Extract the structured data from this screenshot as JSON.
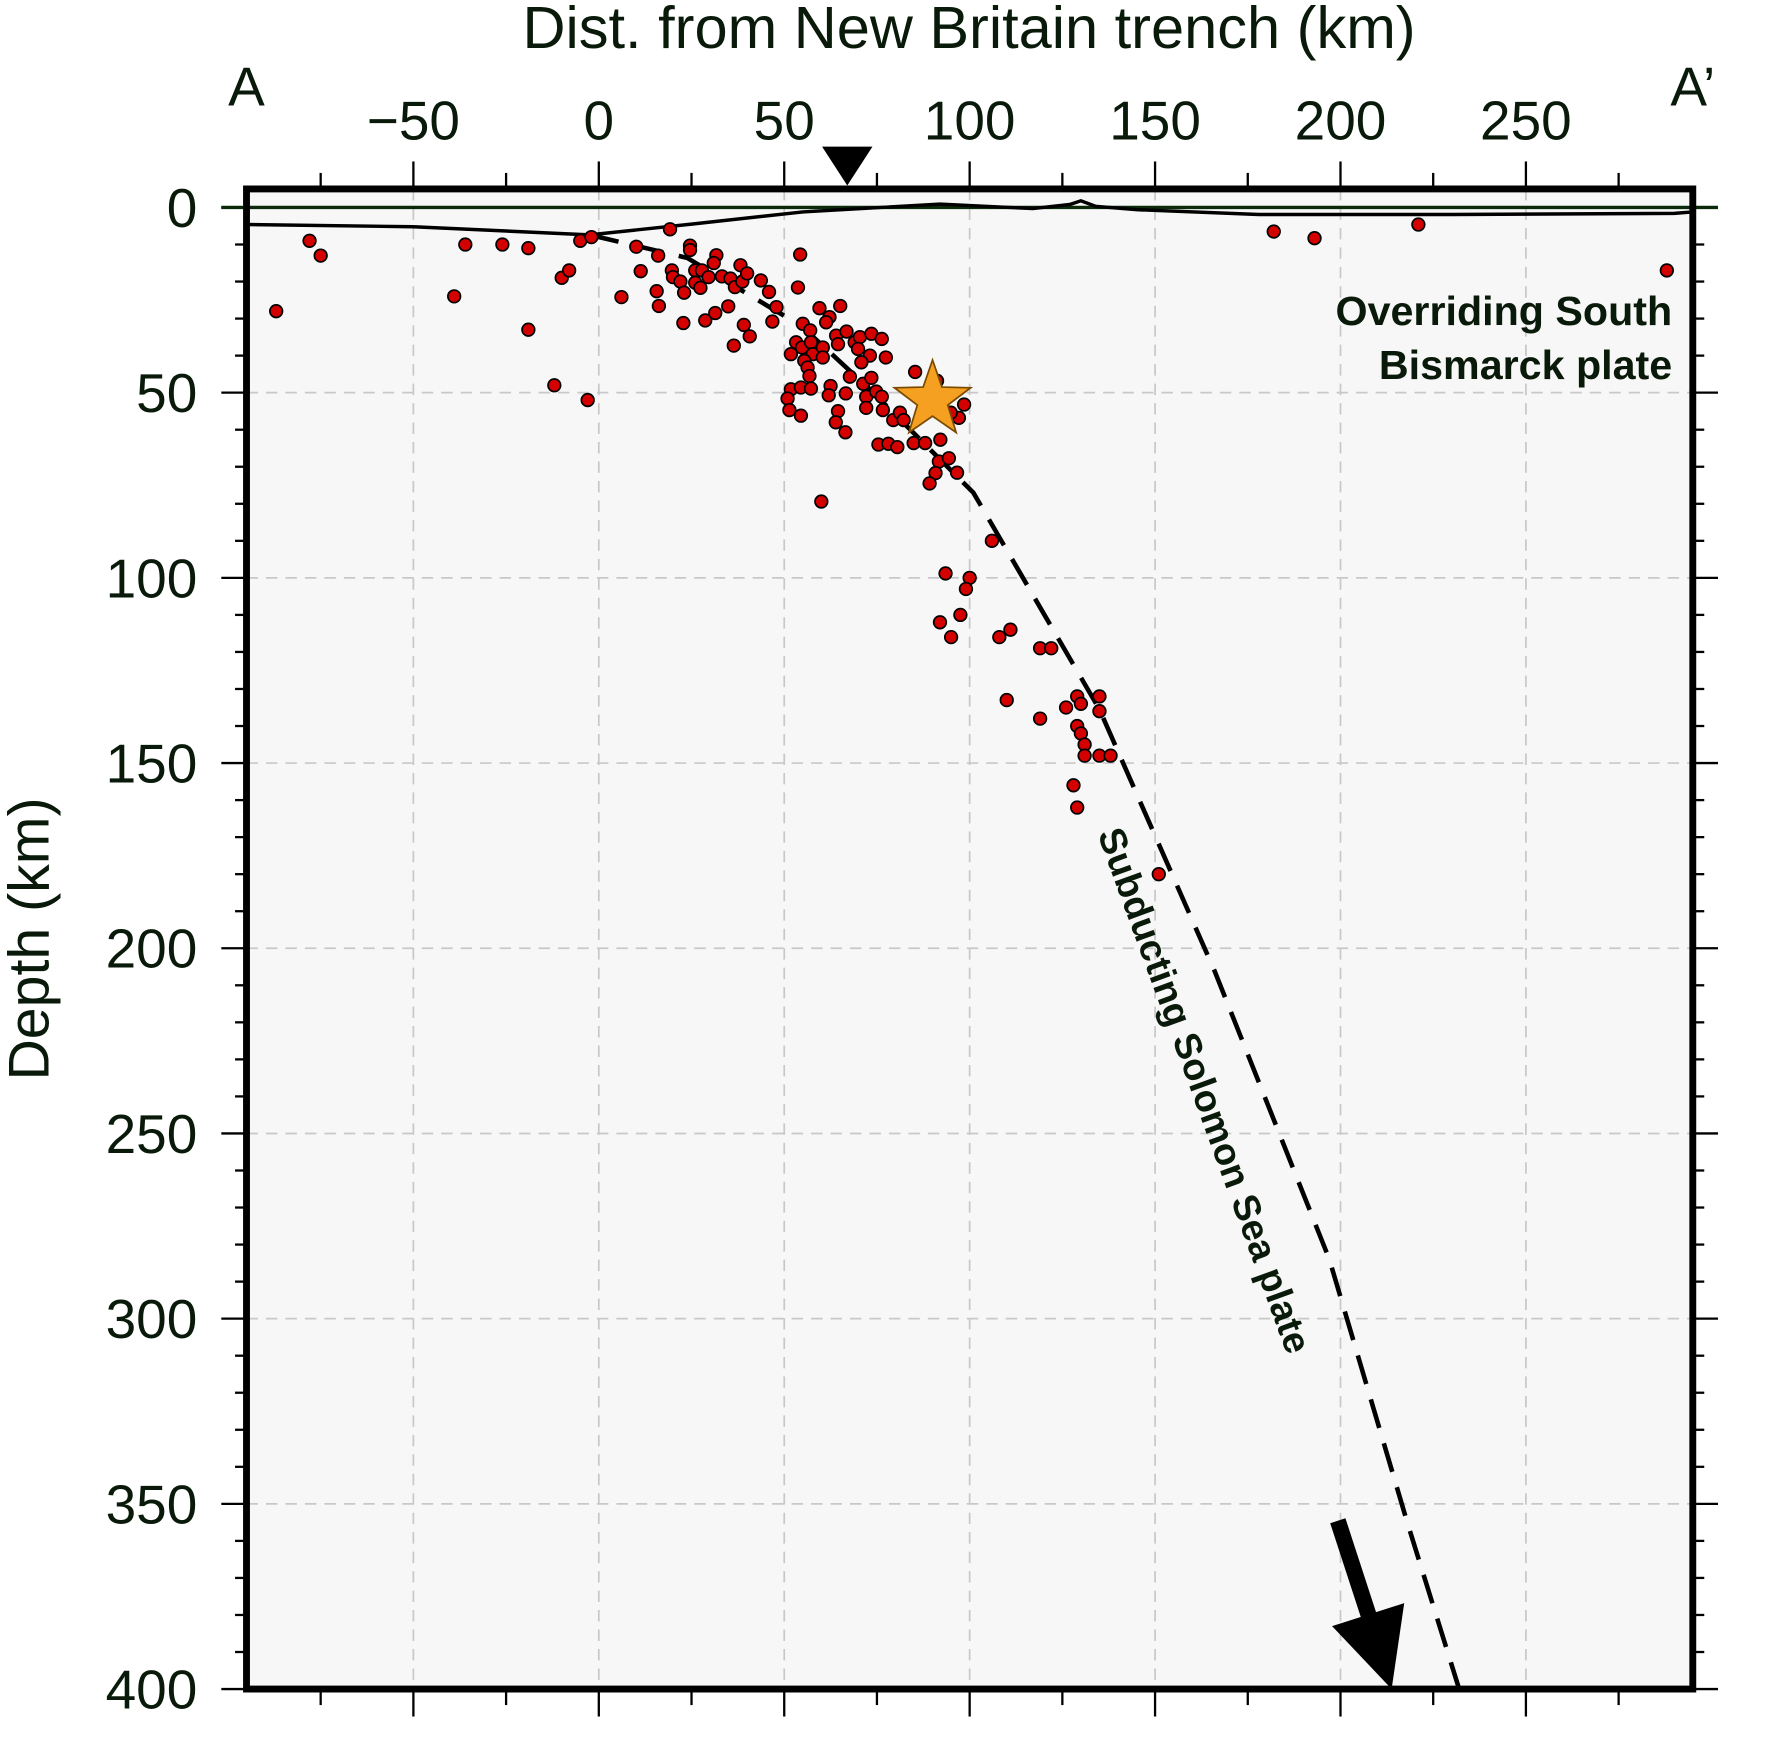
{
  "chart_data": {
    "type": "scatter",
    "title": "Dist. from New Britain trench (km)",
    "xlabel": "Dist. from New Britain trench (km)",
    "ylabel": "Depth (km)",
    "xlim": [
      -95,
      295
    ],
    "ylim": [
      400,
      -5
    ],
    "x_ticks": [
      -50,
      0,
      50,
      100,
      150,
      200,
      250
    ],
    "x_tick_labels": [
      "−50",
      "0",
      "50",
      "100",
      "150",
      "200",
      "250"
    ],
    "y_ticks": [
      0,
      50,
      100,
      150,
      200,
      250,
      300,
      350,
      400
    ],
    "y_tick_labels": [
      "0",
      "50",
      "100",
      "150",
      "200",
      "250",
      "300",
      "350",
      "400"
    ],
    "grid": true,
    "profile_labels": {
      "start": "A",
      "end": "A’"
    },
    "trench_marker_x": 67,
    "annotations": {
      "overriding_line1": "Overriding South",
      "overriding_line2": "Bismarck plate",
      "subducting": "Subducting Solomon Sea plate"
    },
    "colors": {
      "event": "#d40000",
      "mainshock": "#f5a020",
      "background": "#f7f7f7"
    },
    "mainshock": {
      "x": 90,
      "y": 52
    },
    "topography": [
      [
        -95,
        4.6
      ],
      [
        -50,
        5.2
      ],
      [
        -2.5,
        7.4
      ],
      [
        25,
        4.5
      ],
      [
        55,
        1.2
      ],
      [
        92,
        -0.9
      ],
      [
        117,
        0.3
      ],
      [
        127,
        -0.8
      ],
      [
        130,
        -1.8
      ],
      [
        134,
        -0.3
      ],
      [
        145,
        0.6
      ],
      [
        178,
        1.9
      ],
      [
        230,
        1.9
      ],
      [
        290,
        1.6
      ],
      [
        295,
        1.2
      ]
    ],
    "slab_top": [
      [
        -2.5,
        7.4
      ],
      [
        23.8,
        13.6
      ],
      [
        54.6,
        32
      ],
      [
        73,
        49
      ],
      [
        101,
        77
      ],
      [
        135,
        135.5
      ],
      [
        166,
        206
      ],
      [
        197,
        284
      ],
      [
        218,
        355
      ],
      [
        232,
        400
      ]
    ],
    "events": [
      [
        -87,
        28
      ],
      [
        -78,
        9
      ],
      [
        -75,
        13
      ],
      [
        -39,
        24
      ],
      [
        -36,
        10
      ],
      [
        -26,
        10
      ],
      [
        -19,
        11
      ],
      [
        -19,
        33
      ],
      [
        -12,
        48
      ],
      [
        -10,
        19
      ],
      [
        -8,
        17
      ],
      [
        -5,
        9
      ],
      [
        -3,
        52
      ],
      [
        -2,
        8
      ],
      [
        19.2,
        5.9
      ],
      [
        10.1,
        10.6
      ],
      [
        16,
        13
      ],
      [
        24.6,
        10.3
      ],
      [
        24.6,
        11.5
      ],
      [
        11.3,
        17.2
      ],
      [
        6.1,
        24.2
      ],
      [
        15.6,
        22.6
      ],
      [
        16.2,
        26.6
      ],
      [
        19.7,
        17
      ],
      [
        20,
        18.8
      ],
      [
        22,
        20
      ],
      [
        23,
        23
      ],
      [
        26,
        17
      ],
      [
        27.8,
        17
      ],
      [
        26,
        20.3
      ],
      [
        27.4,
        21.7
      ],
      [
        29.6,
        18.8
      ],
      [
        31.7,
        12.9
      ],
      [
        31,
        15
      ],
      [
        33.2,
        18.6
      ],
      [
        35.5,
        19.2
      ],
      [
        36.7,
        21.5
      ],
      [
        38.2,
        15.6
      ],
      [
        38.7,
        20
      ],
      [
        40,
        17.8
      ],
      [
        22.8,
        31.2
      ],
      [
        28.7,
        30.5
      ],
      [
        31.4,
        28.5
      ],
      [
        34.9,
        26.7
      ],
      [
        36.4,
        37.3
      ],
      [
        39.1,
        31.7
      ],
      [
        40.7,
        34.8
      ],
      [
        43.7,
        19.7
      ],
      [
        45.9,
        22.8
      ],
      [
        47.9,
        26.9
      ],
      [
        46.8,
        30.8
      ],
      [
        54.3,
        12.7
      ],
      [
        53.7,
        21.6
      ],
      [
        55,
        31.4
      ],
      [
        57,
        33.2
      ],
      [
        53.2,
        36.4
      ],
      [
        51.8,
        39.6
      ],
      [
        54.8,
        37.8
      ],
      [
        57.2,
        36.4
      ],
      [
        57.7,
        39.6
      ],
      [
        55.4,
        41.4
      ],
      [
        56.3,
        43.2
      ],
      [
        56.8,
        45.5
      ],
      [
        60.4,
        37.8
      ],
      [
        60.4,
        40.5
      ],
      [
        59.5,
        27.2
      ],
      [
        62.2,
        29.6
      ],
      [
        61.3,
        31
      ],
      [
        65.1,
        26.6
      ],
      [
        64,
        34.6
      ],
      [
        66.8,
        33.5
      ],
      [
        64.5,
        36.9
      ],
      [
        69,
        36.4
      ],
      [
        70.4,
        35
      ],
      [
        69.9,
        38.2
      ],
      [
        73.5,
        34.1
      ],
      [
        76.3,
        35.5
      ],
      [
        73.1,
        40
      ],
      [
        70.8,
        41.8
      ],
      [
        77.4,
        40.5
      ],
      [
        51.8,
        49.1
      ],
      [
        54.5,
        48.6
      ],
      [
        57.2,
        48.9
      ],
      [
        50.9,
        51.6
      ],
      [
        51.4,
        54.7
      ],
      [
        54.5,
        56.2
      ],
      [
        62.5,
        48.2
      ],
      [
        62,
        50.7
      ],
      [
        66.6,
        50.2
      ],
      [
        64.5,
        55
      ],
      [
        63.9,
        58
      ],
      [
        66.5,
        60.7
      ],
      [
        67.7,
        45.7
      ],
      [
        71.3,
        47.6
      ],
      [
        73.5,
        46
      ],
      [
        72.1,
        51.1
      ],
      [
        74.8,
        49.7
      ],
      [
        76.3,
        51.1
      ],
      [
        72.1,
        54.1
      ],
      [
        76.6,
        54.7
      ],
      [
        79.4,
        57.4
      ],
      [
        81.2,
        55.4
      ],
      [
        82.2,
        57.4
      ],
      [
        85.3,
        44.4
      ],
      [
        91.2,
        46.8
      ],
      [
        98.5,
        53.2
      ],
      [
        97.1,
        56.8
      ],
      [
        94.9,
        55.4
      ],
      [
        75.4,
        64
      ],
      [
        78.1,
        63.8
      ],
      [
        80.5,
        64.7
      ],
      [
        84.9,
        63.6
      ],
      [
        88,
        63.6
      ],
      [
        92.1,
        62.7
      ],
      [
        91.7,
        68.6
      ],
      [
        94.4,
        67.7
      ],
      [
        90.8,
        71.7
      ],
      [
        96.6,
        71.6
      ],
      [
        89.2,
        74.5
      ],
      [
        60,
        79.4
      ],
      [
        106,
        90
      ],
      [
        93.5,
        98.8
      ],
      [
        100,
        100
      ],
      [
        99,
        103
      ],
      [
        97.5,
        110
      ],
      [
        92,
        112
      ],
      [
        95,
        116
      ],
      [
        108,
        116
      ],
      [
        111,
        114
      ],
      [
        119,
        119
      ],
      [
        122,
        119
      ],
      [
        110,
        133
      ],
      [
        119,
        138
      ],
      [
        129,
        132
      ],
      [
        130,
        134
      ],
      [
        126,
        135
      ],
      [
        135,
        132
      ],
      [
        135,
        136
      ],
      [
        129,
        140
      ],
      [
        130,
        142
      ],
      [
        131,
        145
      ],
      [
        131,
        148
      ],
      [
        135,
        148
      ],
      [
        138,
        148
      ],
      [
        128,
        156
      ],
      [
        129,
        162
      ],
      [
        151,
        180
      ],
      [
        182,
        6.5
      ],
      [
        193,
        8.3
      ],
      [
        221,
        4.6
      ],
      [
        288,
        17
      ]
    ]
  }
}
